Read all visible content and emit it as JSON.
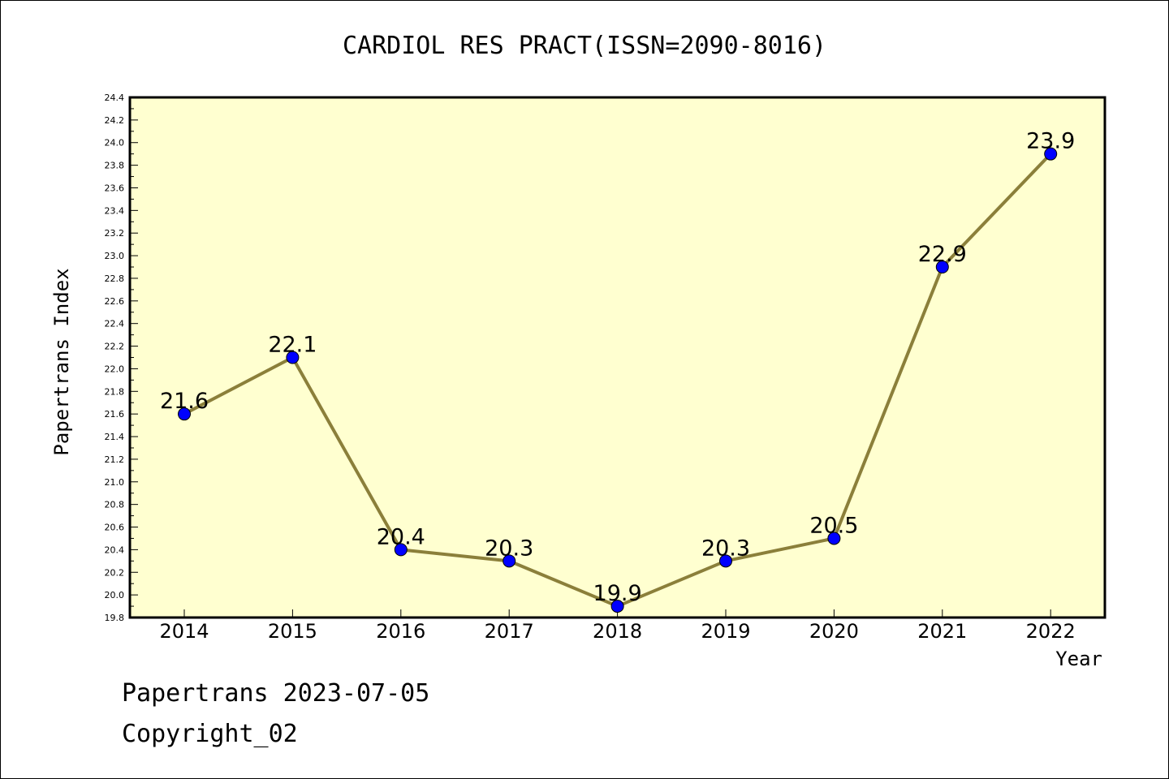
{
  "chart_data": {
    "type": "line",
    "title": "CARDIOL RES PRACT(ISSN=2090-8016)",
    "xlabel": "Year",
    "ylabel": "Papertrans Index",
    "categories": [
      "2014",
      "2015",
      "2016",
      "2017",
      "2018",
      "2019",
      "2020",
      "2021",
      "2022"
    ],
    "series": [
      {
        "values": [
          21.6,
          22.1,
          20.4,
          20.3,
          19.9,
          20.3,
          20.5,
          22.9,
          23.9
        ]
      }
    ],
    "data_labels": [
      "21.6",
      "22.1",
      "20.4",
      "20.3",
      "19.9",
      "20.3",
      "20.5",
      "22.9",
      "23.9"
    ],
    "ylim": [
      19.8,
      24.4
    ],
    "yticks": [
      "19.8",
      "20.0",
      "20.2",
      "20.4",
      "20.6",
      "20.8",
      "21.0",
      "21.2",
      "21.4",
      "21.6",
      "21.8",
      "22.0",
      "22.2",
      "22.4",
      "22.6",
      "22.8",
      "23.0",
      "23.2",
      "23.4",
      "23.6",
      "23.8",
      "24.0",
      "24.2",
      "24.4"
    ],
    "grid": false,
    "legend": "none",
    "colors": {
      "plot_background": "#ffffd0",
      "line": "#8b7f3a",
      "marker": "#0000ff"
    }
  },
  "footer": {
    "line1": "Papertrans 2023-07-05",
    "line2": "Copyright_02"
  }
}
